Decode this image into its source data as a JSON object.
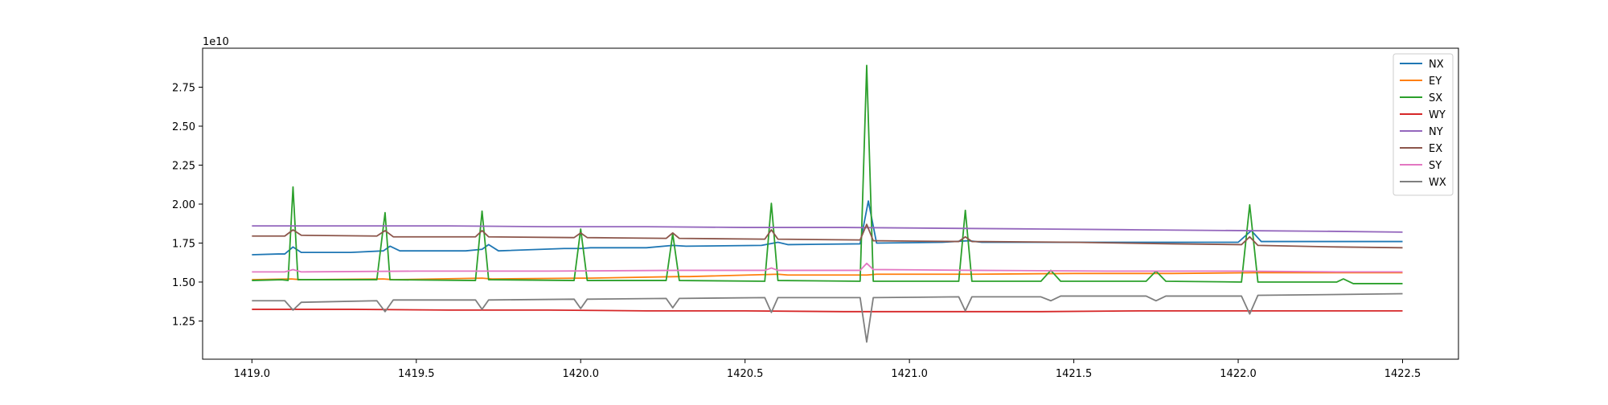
{
  "chart_data": {
    "type": "line",
    "title": "",
    "xlabel": "",
    "ylabel": "",
    "y_offset_label": "1e10",
    "y_scale": 10000000000.0,
    "xlim": [
      1418.85,
      1422.67
    ],
    "ylim": [
      1.005,
      3.0
    ],
    "x_ticks": [
      1419.0,
      1419.5,
      1420.0,
      1420.5,
      1421.0,
      1421.5,
      1422.0,
      1422.5
    ],
    "x_tick_labels": [
      "1419.0",
      "1419.5",
      "1420.0",
      "1420.5",
      "1421.0",
      "1421.5",
      "1422.0",
      "1422.5"
    ],
    "y_ticks": [
      1.25,
      1.5,
      1.75,
      2.0,
      2.25,
      2.5,
      2.75
    ],
    "y_tick_labels": [
      "1.25",
      "1.50",
      "1.75",
      "2.00",
      "2.25",
      "2.50",
      "2.75"
    ],
    "grid": false,
    "legend_position": "top-right",
    "series": [
      {
        "name": "NX",
        "color": "#1f77b4",
        "values": [
          [
            1419.0,
            1.675
          ],
          [
            1419.08,
            1.68
          ],
          [
            1419.1,
            1.68
          ],
          [
            1419.125,
            1.725
          ],
          [
            1419.15,
            1.69
          ],
          [
            1419.3,
            1.69
          ],
          [
            1419.4,
            1.7
          ],
          [
            1419.42,
            1.73
          ],
          [
            1419.45,
            1.7
          ],
          [
            1419.65,
            1.7
          ],
          [
            1419.7,
            1.71
          ],
          [
            1419.72,
            1.74
          ],
          [
            1419.75,
            1.7
          ],
          [
            1419.95,
            1.715
          ],
          [
            1420.0,
            1.715
          ],
          [
            1420.03,
            1.72
          ],
          [
            1420.2,
            1.72
          ],
          [
            1420.28,
            1.735
          ],
          [
            1420.32,
            1.73
          ],
          [
            1420.55,
            1.735
          ],
          [
            1420.6,
            1.755
          ],
          [
            1420.63,
            1.74
          ],
          [
            1420.85,
            1.745
          ],
          [
            1420.875,
            2.02
          ],
          [
            1420.9,
            1.75
          ],
          [
            1421.1,
            1.755
          ],
          [
            1421.18,
            1.765
          ],
          [
            1421.22,
            1.755
          ],
          [
            1421.5,
            1.755
          ],
          [
            1421.8,
            1.755
          ],
          [
            1422.0,
            1.755
          ],
          [
            1422.04,
            1.83
          ],
          [
            1422.07,
            1.76
          ],
          [
            1422.3,
            1.76
          ],
          [
            1422.5,
            1.76
          ]
        ]
      },
      {
        "name": "EY",
        "color": "#ff7f0e",
        "values": [
          [
            1419.0,
            1.515
          ],
          [
            1419.12,
            1.52
          ],
          [
            1419.15,
            1.515
          ],
          [
            1419.4,
            1.52
          ],
          [
            1419.43,
            1.515
          ],
          [
            1419.7,
            1.525
          ],
          [
            1419.73,
            1.52
          ],
          [
            1420.0,
            1.525
          ],
          [
            1420.03,
            1.525
          ],
          [
            1420.3,
            1.535
          ],
          [
            1420.33,
            1.535
          ],
          [
            1420.6,
            1.55
          ],
          [
            1420.63,
            1.545
          ],
          [
            1420.87,
            1.545
          ],
          [
            1420.9,
            1.55
          ],
          [
            1421.2,
            1.55
          ],
          [
            1421.5,
            1.555
          ],
          [
            1421.8,
            1.555
          ],
          [
            1422.05,
            1.56
          ],
          [
            1422.3,
            1.56
          ],
          [
            1422.5,
            1.56
          ]
        ]
      },
      {
        "name": "SX",
        "color": "#2ca02c",
        "values": [
          [
            1419.0,
            1.51
          ],
          [
            1419.09,
            1.515
          ],
          [
            1419.11,
            1.51
          ],
          [
            1419.125,
            2.11
          ],
          [
            1419.14,
            1.515
          ],
          [
            1419.38,
            1.515
          ],
          [
            1419.405,
            1.945
          ],
          [
            1419.42,
            1.515
          ],
          [
            1419.68,
            1.51
          ],
          [
            1419.7,
            1.955
          ],
          [
            1419.72,
            1.515
          ],
          [
            1419.98,
            1.51
          ],
          [
            1420.0,
            1.84
          ],
          [
            1420.02,
            1.51
          ],
          [
            1420.26,
            1.51
          ],
          [
            1420.28,
            1.81
          ],
          [
            1420.3,
            1.51
          ],
          [
            1420.56,
            1.505
          ],
          [
            1420.58,
            2.005
          ],
          [
            1420.6,
            1.51
          ],
          [
            1420.85,
            1.505
          ],
          [
            1420.87,
            2.89
          ],
          [
            1420.89,
            1.505
          ],
          [
            1421.15,
            1.505
          ],
          [
            1421.17,
            1.96
          ],
          [
            1421.19,
            1.505
          ],
          [
            1421.4,
            1.505
          ],
          [
            1421.43,
            1.575
          ],
          [
            1421.46,
            1.505
          ],
          [
            1421.72,
            1.505
          ],
          [
            1421.75,
            1.57
          ],
          [
            1421.78,
            1.505
          ],
          [
            1422.01,
            1.5
          ],
          [
            1422.035,
            1.995
          ],
          [
            1422.06,
            1.5
          ],
          [
            1422.3,
            1.5
          ],
          [
            1422.32,
            1.52
          ],
          [
            1422.35,
            1.49
          ],
          [
            1422.5,
            1.49
          ]
        ]
      },
      {
        "name": "WY",
        "color": "#d62728",
        "values": [
          [
            1419.0,
            1.325
          ],
          [
            1419.3,
            1.325
          ],
          [
            1419.6,
            1.32
          ],
          [
            1419.9,
            1.32
          ],
          [
            1420.2,
            1.315
          ],
          [
            1420.5,
            1.315
          ],
          [
            1420.8,
            1.31
          ],
          [
            1421.1,
            1.31
          ],
          [
            1421.4,
            1.31
          ],
          [
            1421.7,
            1.315
          ],
          [
            1422.0,
            1.315
          ],
          [
            1422.3,
            1.315
          ],
          [
            1422.5,
            1.315
          ]
        ]
      },
      {
        "name": "NY",
        "color": "#9467bd",
        "values": [
          [
            1419.0,
            1.86
          ],
          [
            1419.3,
            1.86
          ],
          [
            1419.6,
            1.86
          ],
          [
            1419.9,
            1.855
          ],
          [
            1420.2,
            1.855
          ],
          [
            1420.5,
            1.85
          ],
          [
            1420.8,
            1.85
          ],
          [
            1421.1,
            1.845
          ],
          [
            1421.4,
            1.84
          ],
          [
            1421.7,
            1.835
          ],
          [
            1422.0,
            1.83
          ],
          [
            1422.3,
            1.825
          ],
          [
            1422.5,
            1.82
          ]
        ]
      },
      {
        "name": "EX",
        "color": "#8c564b",
        "values": [
          [
            1419.0,
            1.795
          ],
          [
            1419.1,
            1.795
          ],
          [
            1419.125,
            1.835
          ],
          [
            1419.15,
            1.8
          ],
          [
            1419.38,
            1.795
          ],
          [
            1419.405,
            1.83
          ],
          [
            1419.43,
            1.79
          ],
          [
            1419.68,
            1.79
          ],
          [
            1419.7,
            1.83
          ],
          [
            1419.72,
            1.79
          ],
          [
            1419.98,
            1.785
          ],
          [
            1420.0,
            1.815
          ],
          [
            1420.02,
            1.785
          ],
          [
            1420.26,
            1.78
          ],
          [
            1420.28,
            1.815
          ],
          [
            1420.3,
            1.78
          ],
          [
            1420.56,
            1.775
          ],
          [
            1420.58,
            1.835
          ],
          [
            1420.6,
            1.775
          ],
          [
            1420.85,
            1.77
          ],
          [
            1420.87,
            1.87
          ],
          [
            1420.89,
            1.765
          ],
          [
            1421.15,
            1.76
          ],
          [
            1421.17,
            1.79
          ],
          [
            1421.19,
            1.76
          ],
          [
            1421.5,
            1.755
          ],
          [
            1421.8,
            1.745
          ],
          [
            1422.01,
            1.74
          ],
          [
            1422.035,
            1.79
          ],
          [
            1422.06,
            1.735
          ],
          [
            1422.3,
            1.725
          ],
          [
            1422.5,
            1.72
          ]
        ]
      },
      {
        "name": "SY",
        "color": "#e377c2",
        "values": [
          [
            1419.0,
            1.565
          ],
          [
            1419.1,
            1.565
          ],
          [
            1419.125,
            1.58
          ],
          [
            1419.15,
            1.565
          ],
          [
            1419.5,
            1.57
          ],
          [
            1419.9,
            1.57
          ],
          [
            1420.3,
            1.575
          ],
          [
            1420.56,
            1.575
          ],
          [
            1420.58,
            1.59
          ],
          [
            1420.6,
            1.575
          ],
          [
            1420.85,
            1.575
          ],
          [
            1420.87,
            1.62
          ],
          [
            1420.89,
            1.58
          ],
          [
            1421.2,
            1.575
          ],
          [
            1421.6,
            1.57
          ],
          [
            1422.0,
            1.57
          ],
          [
            1422.3,
            1.565
          ],
          [
            1422.5,
            1.565
          ]
        ]
      },
      {
        "name": "WX",
        "color": "#7f7f7f",
        "values": [
          [
            1419.0,
            1.38
          ],
          [
            1419.1,
            1.38
          ],
          [
            1419.125,
            1.32
          ],
          [
            1419.15,
            1.37
          ],
          [
            1419.38,
            1.38
          ],
          [
            1419.405,
            1.31
          ],
          [
            1419.43,
            1.385
          ],
          [
            1419.68,
            1.385
          ],
          [
            1419.7,
            1.325
          ],
          [
            1419.72,
            1.385
          ],
          [
            1419.98,
            1.39
          ],
          [
            1420.0,
            1.33
          ],
          [
            1420.02,
            1.39
          ],
          [
            1420.26,
            1.395
          ],
          [
            1420.28,
            1.335
          ],
          [
            1420.3,
            1.395
          ],
          [
            1420.56,
            1.4
          ],
          [
            1420.58,
            1.305
          ],
          [
            1420.6,
            1.4
          ],
          [
            1420.85,
            1.4
          ],
          [
            1420.87,
            1.115
          ],
          [
            1420.89,
            1.4
          ],
          [
            1421.15,
            1.405
          ],
          [
            1421.17,
            1.315
          ],
          [
            1421.19,
            1.405
          ],
          [
            1421.4,
            1.405
          ],
          [
            1421.43,
            1.38
          ],
          [
            1421.46,
            1.41
          ],
          [
            1421.72,
            1.41
          ],
          [
            1421.75,
            1.38
          ],
          [
            1421.78,
            1.41
          ],
          [
            1422.01,
            1.41
          ],
          [
            1422.035,
            1.295
          ],
          [
            1422.06,
            1.415
          ],
          [
            1422.3,
            1.42
          ],
          [
            1422.5,
            1.425
          ]
        ]
      }
    ]
  }
}
